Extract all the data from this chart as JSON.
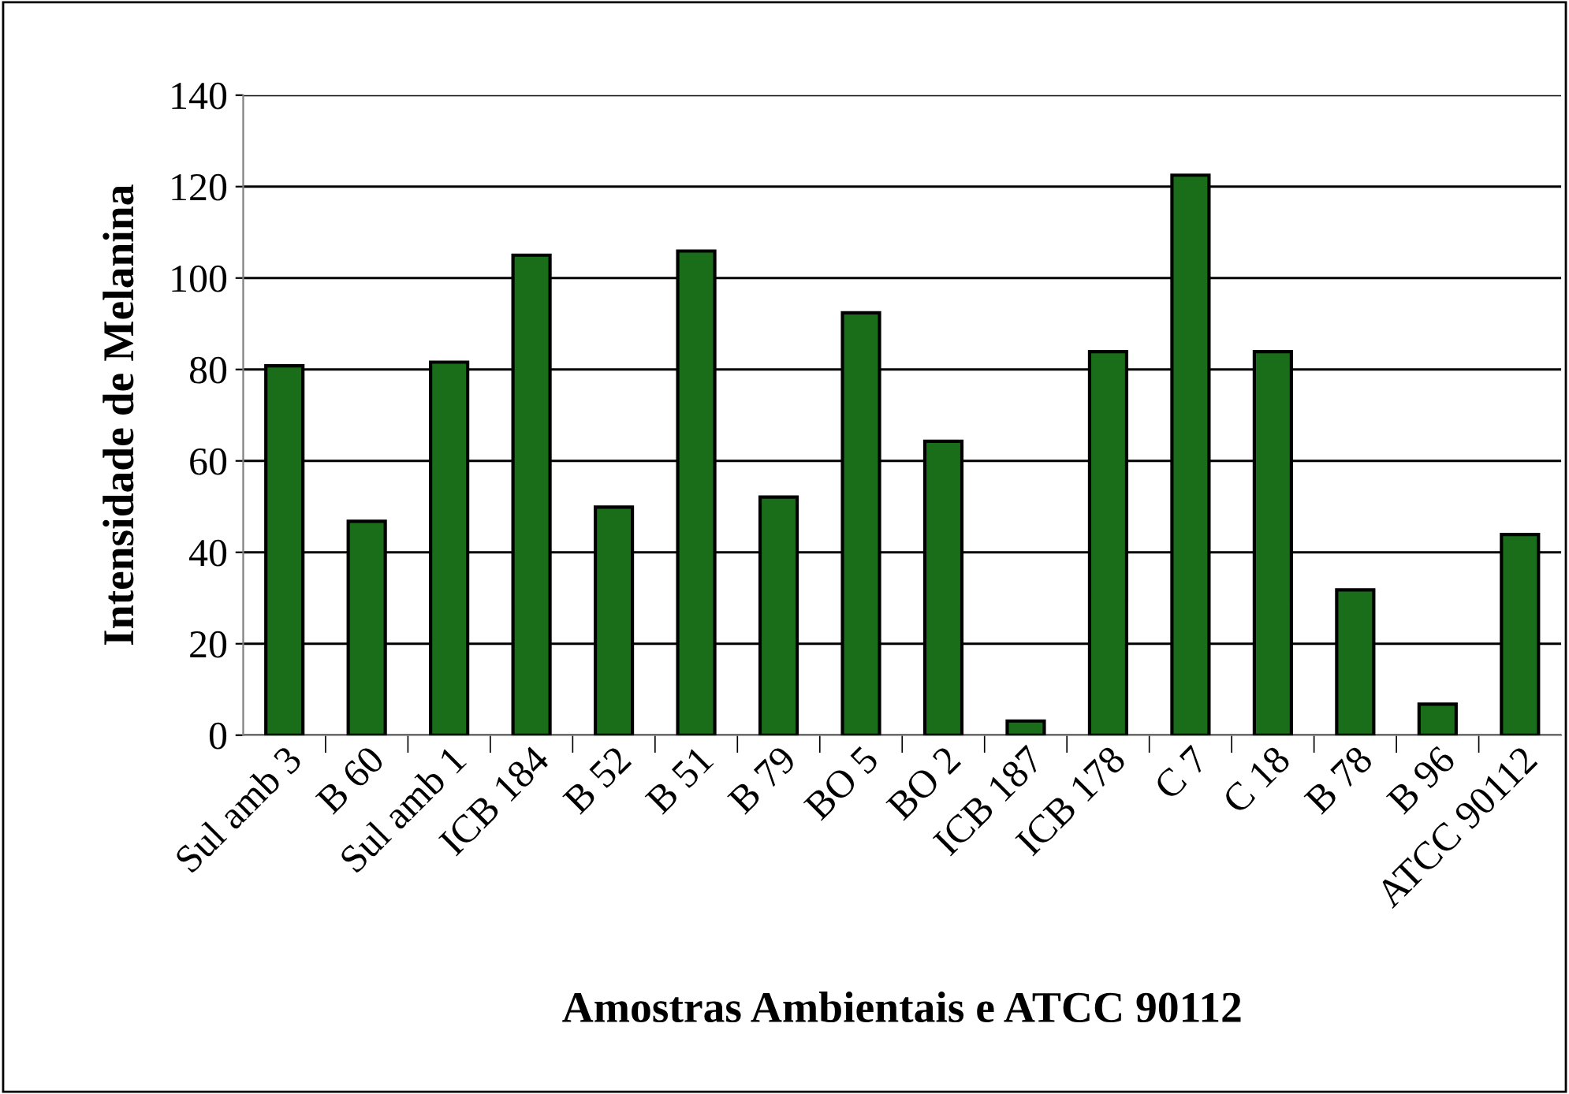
{
  "chart_data": {
    "type": "bar",
    "xlabel": "Amostras Ambientais e ATCC 90112",
    "ylabel": "Intensidade de Melanina",
    "categories": [
      "Sul amb 3",
      "B 60",
      "Sul amb 1",
      "ICB 184",
      "B 52",
      "B 51",
      "B 79",
      "BO 5",
      "BO 2",
      "ICB 187",
      "ICB 178",
      "C 7",
      "C 18",
      "B 78",
      "B 96",
      "ATCC 90112"
    ],
    "values": [
      80.8,
      46.8,
      81.6,
      105,
      49.9,
      105.9,
      52.1,
      92.4,
      64.3,
      3.1,
      83.9,
      122.5,
      83.9,
      31.8,
      6.8,
      43.9
    ],
    "color": "#1a6e1a",
    "ylim": [
      0,
      140
    ],
    "yticks": [
      0,
      20,
      40,
      60,
      80,
      100,
      120,
      140
    ],
    "grid": "y",
    "legend": false
  }
}
